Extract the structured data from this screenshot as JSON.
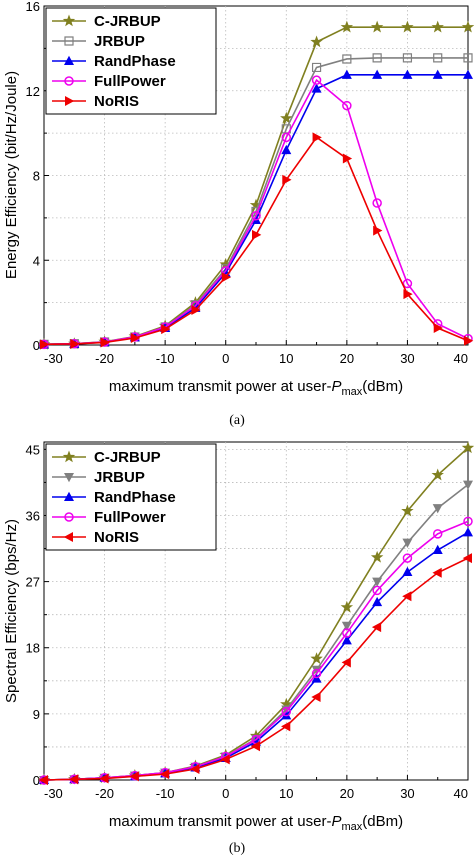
{
  "chart_data": [
    {
      "type": "line",
      "caption": "(a)",
      "xlabel_main": "maximum transmit power at user-",
      "xlabel_var": "P",
      "xlabel_sub": "max",
      "xlabel_unit": "(dBm)",
      "ylabel": "Energy Efficiency (bit/Hz/Joule)",
      "xlim": [
        -30,
        40
      ],
      "ylim": [
        0,
        16
      ],
      "xticks": [
        -30,
        -20,
        -10,
        0,
        10,
        20,
        30,
        40
      ],
      "yticks": [
        0,
        4,
        8,
        12,
        16
      ],
      "legend_position": "top-left",
      "x": [
        -30,
        -25,
        -20,
        -15,
        -10,
        -5,
        0,
        5,
        10,
        15,
        20,
        25,
        30,
        35,
        40
      ],
      "series": [
        {
          "name": "C-JRBUP",
          "color": "#808020",
          "marker": "star",
          "values": [
            0.03,
            0.06,
            0.15,
            0.4,
            0.9,
            2.0,
            3.8,
            6.6,
            10.7,
            14.3,
            15.0,
            15.0,
            15.0,
            15.0,
            15.0
          ]
        },
        {
          "name": "JRBUP",
          "color": "#808080",
          "marker": "square",
          "values": [
            0.03,
            0.06,
            0.14,
            0.38,
            0.85,
            1.9,
            3.6,
            6.3,
            10.2,
            13.1,
            13.5,
            13.55,
            13.55,
            13.55,
            13.55
          ]
        },
        {
          "name": "RandPhase",
          "color": "#0000ee",
          "marker": "triangle-up",
          "values": [
            0.03,
            0.05,
            0.13,
            0.36,
            0.8,
            1.75,
            3.4,
            5.9,
            9.2,
            12.1,
            12.75,
            12.75,
            12.75,
            12.75,
            12.75
          ]
        },
        {
          "name": "FullPower",
          "color": "#ee00ee",
          "marker": "circle",
          "values": [
            0.03,
            0.06,
            0.14,
            0.38,
            0.85,
            1.85,
            3.5,
            6.1,
            9.8,
            12.5,
            11.3,
            6.7,
            2.9,
            1.0,
            0.3
          ]
        },
        {
          "name": "NoRIS",
          "color": "#ee0000",
          "marker": "triangle-right",
          "values": [
            0.03,
            0.05,
            0.12,
            0.33,
            0.75,
            1.65,
            3.2,
            5.2,
            7.8,
            9.8,
            8.8,
            5.4,
            2.4,
            0.8,
            0.2
          ]
        }
      ]
    },
    {
      "type": "line",
      "caption": "(b)",
      "xlabel_main": "maximum transmit power at user-",
      "xlabel_var": "P",
      "xlabel_sub": "max",
      "xlabel_unit": "(dBm)",
      "ylabel": "Spectral Efficiency (bps/Hz)",
      "xlim": [
        -30,
        40
      ],
      "ylim": [
        0,
        46
      ],
      "xticks": [
        -30,
        -20,
        -10,
        0,
        10,
        20,
        30,
        40
      ],
      "yticks": [
        0,
        9,
        18,
        27,
        36,
        45
      ],
      "legend_position": "top-left",
      "x": [
        -30,
        -25,
        -20,
        -15,
        -10,
        -5,
        0,
        5,
        10,
        15,
        20,
        25,
        30,
        35,
        40
      ],
      "series": [
        {
          "name": "C-JRBUP",
          "color": "#808020",
          "marker": "star",
          "values": [
            0.0,
            0.1,
            0.3,
            0.6,
            1.0,
            1.9,
            3.4,
            6.0,
            10.3,
            16.5,
            23.5,
            30.3,
            36.6,
            41.5,
            45.2
          ]
        },
        {
          "name": "JRBUP",
          "color": "#808080",
          "marker": "triangle-down",
          "values": [
            0.0,
            0.1,
            0.3,
            0.6,
            1.0,
            1.8,
            3.2,
            5.6,
            9.6,
            15.0,
            21.0,
            27.0,
            32.3,
            37.0,
            40.2
          ]
        },
        {
          "name": "RandPhase",
          "color": "#0000ee",
          "marker": "triangle-up",
          "values": [
            0.0,
            0.1,
            0.3,
            0.5,
            0.9,
            1.7,
            3.0,
            5.2,
            8.8,
            13.8,
            19.0,
            24.2,
            28.3,
            31.3,
            33.7
          ]
        },
        {
          "name": "FullPower",
          "color": "#ee00ee",
          "marker": "circle",
          "values": [
            0.0,
            0.1,
            0.3,
            0.6,
            1.0,
            1.8,
            3.2,
            5.5,
            9.3,
            14.5,
            20.0,
            25.8,
            30.2,
            33.5,
            35.2
          ]
        },
        {
          "name": "NoRIS",
          "color": "#ee0000",
          "marker": "triangle-left",
          "values": [
            0.0,
            0.1,
            0.2,
            0.5,
            0.8,
            1.5,
            2.8,
            4.6,
            7.3,
            11.3,
            16.0,
            20.8,
            25.0,
            28.2,
            30.2
          ]
        }
      ]
    }
  ]
}
